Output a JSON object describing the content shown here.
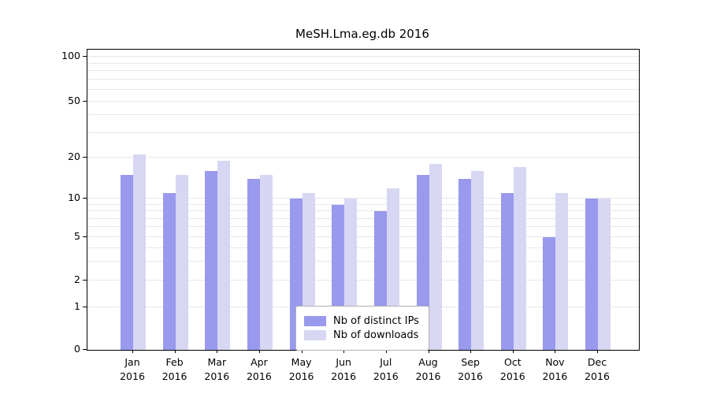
{
  "chart_data": {
    "type": "bar",
    "title": "MeSH.Lma.eg.db 2016",
    "categories": [
      "Jan 2016",
      "Feb 2016",
      "Mar 2016",
      "Apr 2016",
      "May 2016",
      "Jun 2016",
      "Jul 2016",
      "Aug 2016",
      "Sep 2016",
      "Oct 2016",
      "Nov 2016",
      "Dec 2016"
    ],
    "series": [
      {
        "name": "Nb of distinct IPs",
        "color": "#9999ee",
        "values": [
          15,
          11,
          16,
          14,
          10,
          9,
          8,
          15,
          14,
          11,
          5,
          10
        ]
      },
      {
        "name": "Nb of downloads",
        "color": "#d7d7f4",
        "values": [
          21,
          15,
          19,
          15,
          11,
          10,
          12,
          18,
          16,
          17,
          11,
          10
        ]
      }
    ],
    "yticks": [
      0,
      1,
      2,
      5,
      10,
      20,
      50,
      100
    ],
    "ylim": [
      0,
      100
    ],
    "yscale": "log-like",
    "xlabel": "",
    "ylabel": "",
    "grid": true,
    "gridline_values": [
      1,
      2,
      3,
      4,
      5,
      6,
      7,
      8,
      9,
      10,
      20,
      30,
      40,
      50,
      60,
      70,
      80,
      90,
      100
    ],
    "legend_position": "bottom-center"
  }
}
